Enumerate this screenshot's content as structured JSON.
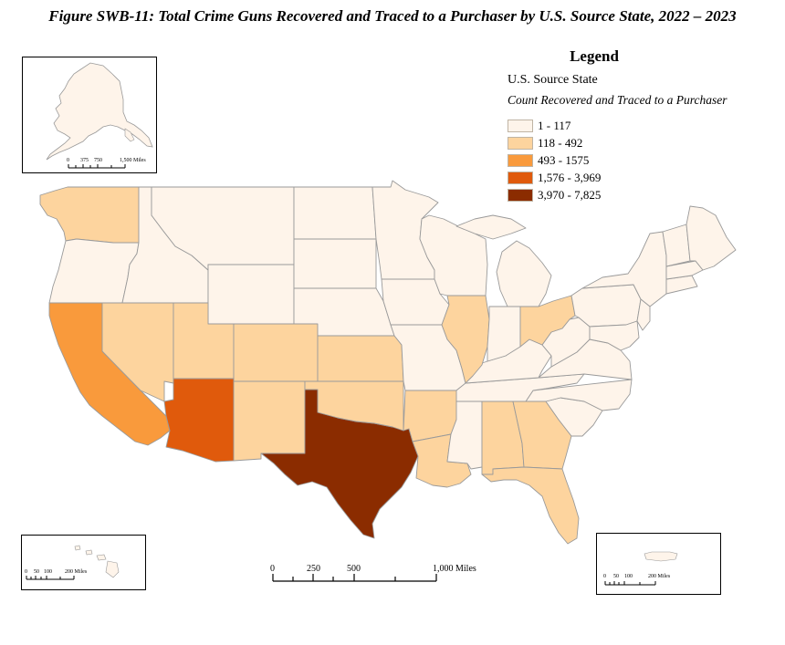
{
  "title": "Figure SWB-11: Total Crime Guns Recovered and Traced to a Purchaser by U.S. Source State, 2022 – 2023",
  "legend": {
    "title": "Legend",
    "subtitle": "U.S. Source State",
    "field": "Count Recovered and Traced to a Purchaser",
    "classes": [
      {
        "label": "1 - 117",
        "color": "#fef4ea"
      },
      {
        "label": "118 - 492",
        "color": "#fdd49e"
      },
      {
        "label": "493 - 1575",
        "color": "#f99a3c"
      },
      {
        "label": "1,576 - 3,969",
        "color": "#e05a0c"
      },
      {
        "label": "3,970 - 7,825",
        "color": "#8b2c00"
      }
    ]
  },
  "scale_bar": {
    "ticks": [
      "0",
      "250",
      "500",
      "1,000 Miles"
    ]
  },
  "inset_scales": {
    "alaska": {
      "ticks": [
        "0",
        "375",
        "750",
        "1,500 Miles"
      ]
    },
    "hawaii": {
      "ticks": [
        "0",
        "50",
        "100",
        "200 Miles"
      ]
    },
    "puerto_rico": {
      "ticks": [
        "0",
        "50",
        "100",
        "200 Miles"
      ]
    }
  },
  "state_classes": {
    "Washington": "118 - 492",
    "Oregon": "1 - 117",
    "California": "493 - 1575",
    "Nevada": "118 - 492",
    "Idaho": "1 - 117",
    "Montana": "1 - 117",
    "Wyoming": "1 - 117",
    "Utah": "118 - 492",
    "Colorado": "118 - 492",
    "Arizona": "1,576 - 3,969",
    "New Mexico": "118 - 492",
    "Texas": "3,970 - 7,825",
    "Oklahoma": "118 - 492",
    "Kansas": "118 - 492",
    "Nebraska": "1 - 117",
    "South Dakota": "1 - 117",
    "North Dakota": "1 - 117",
    "Minnesota": "1 - 117",
    "Iowa": "1 - 117",
    "Missouri": "1 - 117",
    "Arkansas": "118 - 492",
    "Louisiana": "118 - 492",
    "Mississippi": "1 - 117",
    "Alabama": "118 - 492",
    "Georgia": "118 - 492",
    "Florida": "118 - 492",
    "Tennessee": "1 - 117",
    "Kentucky": "1 - 117",
    "Illinois": "118 - 492",
    "Indiana": "1 - 117",
    "Ohio": "118 - 492",
    "Michigan": "1 - 117",
    "Wisconsin": "1 - 117",
    "South Carolina": "1 - 117",
    "North Carolina": "1 - 117",
    "Virginia": "1 - 117",
    "West Virginia": "1 - 117",
    "Pennsylvania": "1 - 117",
    "New York": "1 - 117",
    "Maine": "1 - 117",
    "Alaska": "1 - 117",
    "Hawaii": "1 - 117",
    "Puerto Rico": "1 - 117"
  }
}
